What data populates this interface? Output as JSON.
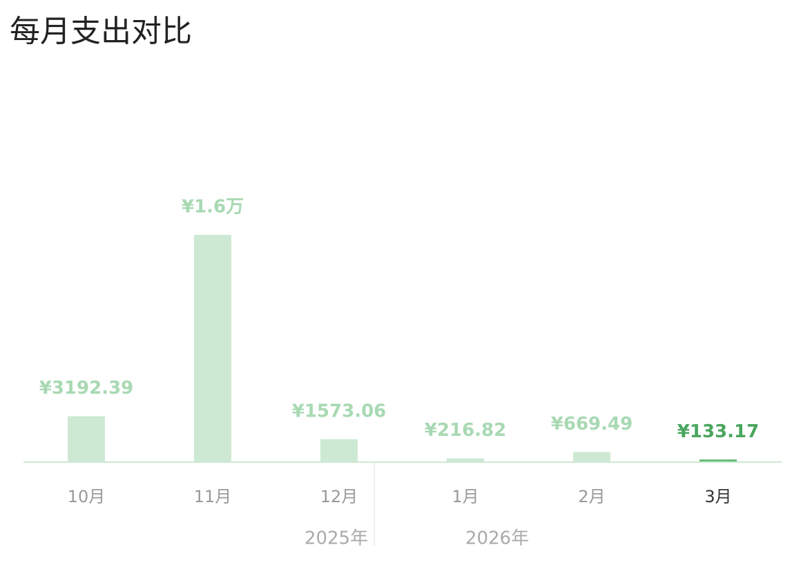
{
  "chart_data": {
    "type": "bar",
    "title": "每月支出对比",
    "categories": [
      "10月",
      "11月",
      "12月",
      "1月",
      "2月",
      "3月"
    ],
    "values": [
      3192.39,
      16000,
      1573.06,
      216.82,
      669.49,
      133.17
    ],
    "value_labels": [
      "¥3192.39",
      "¥1.6万",
      "¥1573.06",
      "¥216.82",
      "¥669.49",
      "¥133.17"
    ],
    "colors": [
      "#cde9d4",
      "#cde9d4",
      "#cde9d4",
      "#cde9d4",
      "#cde9d4",
      "#5db870"
    ],
    "value_label_colors": [
      "#a8d9b3",
      "#a8d9b3",
      "#a8d9b3",
      "#a8d9b3",
      "#a8d9b3",
      "#4aa55e"
    ],
    "category_label_colors": [
      "#999999",
      "#999999",
      "#999999",
      "#999999",
      "#999999",
      "#333333"
    ],
    "year_labels": [
      "2025年",
      "2026年"
    ]
  }
}
